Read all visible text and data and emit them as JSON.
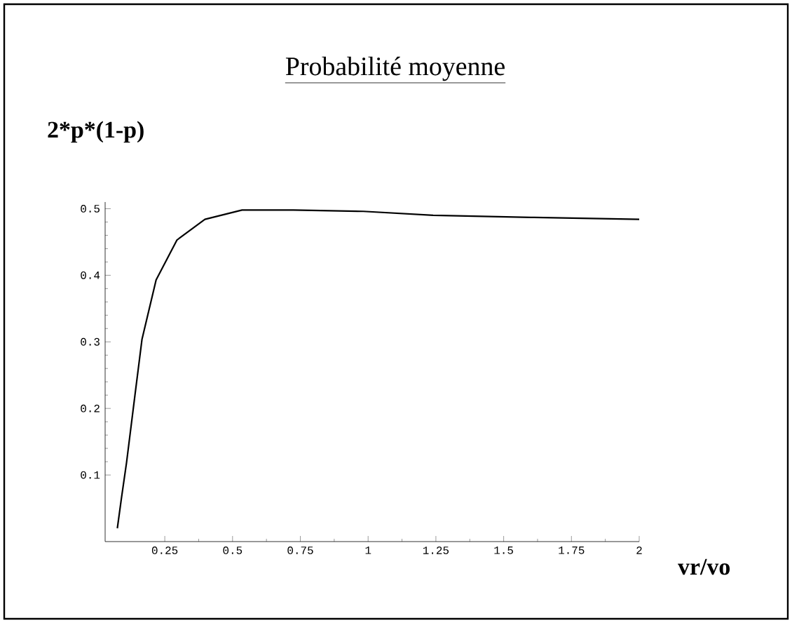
{
  "chart_data": {
    "type": "line",
    "title": "Probabilité moyenne",
    "ylabel": "2*p*(1-p)",
    "xlabel": "vr/vo",
    "x": [
      0.075,
      0.09,
      0.109,
      0.14,
      0.166,
      0.218,
      0.295,
      0.398,
      0.535,
      0.724,
      0.982,
      1.24,
      1.6,
      2
    ],
    "series": [
      {
        "color": "#000000",
        "values": [
          0.02,
          0.065,
          0.119,
          0.22,
          0.304,
          0.393,
          0.453,
          0.484,
          0.498,
          0.498,
          0.496,
          0.49,
          0.487,
          0.484
        ]
      }
    ],
    "xlim": [
      0.03,
      2
    ],
    "ylim": [
      0,
      0.51
    ],
    "xticks": [
      0.25,
      0.5,
      0.75,
      1,
      1.25,
      1.5,
      1.75,
      2
    ],
    "yticks": [
      0.1,
      0.2,
      0.3,
      0.4,
      0.5
    ],
    "grid": false,
    "marker": "none",
    "line_style": "solid"
  }
}
